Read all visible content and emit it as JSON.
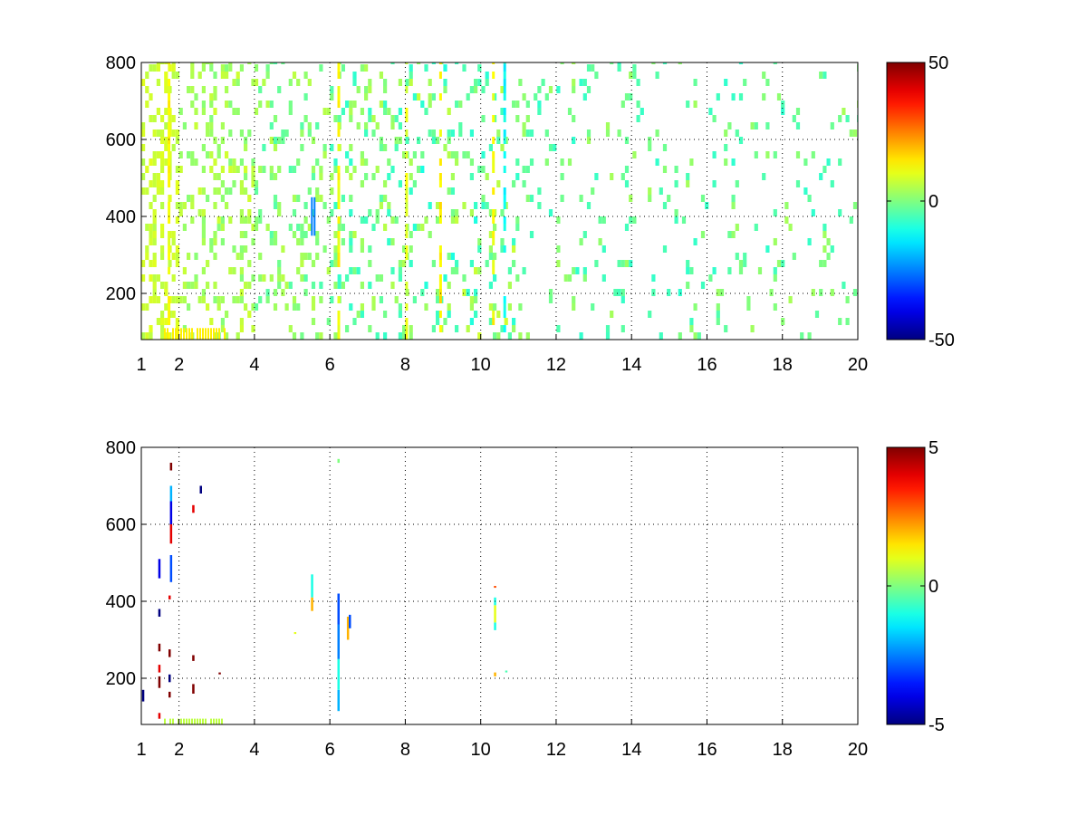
{
  "chart_data": [
    {
      "type": "heatmap",
      "title": "",
      "xlabel": "",
      "ylabel": "",
      "xlim": [
        1,
        20
      ],
      "ylim": [
        80,
        800
      ],
      "xticks": [
        1,
        2,
        4,
        6,
        8,
        10,
        12,
        14,
        16,
        18,
        20
      ],
      "yticks": [
        200,
        400,
        600,
        800
      ],
      "grid": true,
      "colormap": "jet",
      "clim": [
        -50,
        50
      ],
      "colorbar_ticks": [
        50,
        0,
        -50
      ],
      "density_profile": [
        {
          "x": [
            1.0,
            2.0
          ],
          "density": 0.85,
          "values": [
            5,
            10
          ]
        },
        {
          "x": [
            2.0,
            4.0
          ],
          "density": 0.55,
          "values": [
            0,
            8
          ]
        },
        {
          "x": [
            4.0,
            6.0
          ],
          "density": 0.4,
          "values": [
            -5,
            6
          ]
        },
        {
          "x": [
            6.0,
            8.0
          ],
          "density": 0.38,
          "values": [
            -8,
            6
          ]
        },
        {
          "x": [
            8.0,
            11.0
          ],
          "density": 0.4,
          "values": [
            -10,
            8
          ]
        },
        {
          "x": [
            11.0,
            20.0
          ],
          "density": 0.18,
          "values": [
            -8,
            4
          ]
        }
      ],
      "strong_columns": [
        {
          "x": 1.7,
          "value": 12
        },
        {
          "x": 6.2,
          "value": 12
        },
        {
          "x": 8.0,
          "value": 10
        },
        {
          "x": 8.9,
          "value": 14
        },
        {
          "x": 10.3,
          "value": 12
        },
        {
          "x": 10.6,
          "value": -12
        }
      ],
      "features": [
        {
          "x": [
            1.6,
            3.2
          ],
          "y": [
            80,
            110
          ],
          "value": 14
        },
        {
          "x": [
            5.5,
            5.6
          ],
          "y": [
            350,
            450
          ],
          "value": -25
        }
      ]
    },
    {
      "type": "heatmap",
      "title": "",
      "xlabel": "",
      "ylabel": "",
      "xlim": [
        1,
        20
      ],
      "ylim": [
        80,
        800
      ],
      "xticks": [
        1,
        2,
        4,
        6,
        8,
        10,
        12,
        14,
        16,
        18,
        20
      ],
      "yticks": [
        200,
        400,
        600,
        800
      ],
      "grid": true,
      "colormap": "jet",
      "clim": [
        -5,
        5
      ],
      "colorbar_ticks": [
        5,
        0,
        -5
      ],
      "segments": [
        {
          "x": 1.02,
          "y": [
            140,
            170
          ],
          "value": -5
        },
        {
          "x": 1.45,
          "y": [
            95,
            110
          ],
          "value": 4
        },
        {
          "x": 1.45,
          "y": [
            175,
            205
          ],
          "value": 5
        },
        {
          "x": 1.45,
          "y": [
            215,
            235
          ],
          "value": 4
        },
        {
          "x": 1.45,
          "y": [
            270,
            290
          ],
          "value": 5
        },
        {
          "x": 1.45,
          "y": [
            360,
            380
          ],
          "value": -5
        },
        {
          "x": 1.45,
          "y": [
            460,
            510
          ],
          "value": -4
        },
        {
          "x": 1.72,
          "y": [
            150,
            165
          ],
          "value": 5
        },
        {
          "x": 1.72,
          "y": [
            190,
            210
          ],
          "value": -5
        },
        {
          "x": 1.72,
          "y": [
            255,
            275
          ],
          "value": 5
        },
        {
          "x": 1.72,
          "y": [
            405,
            415
          ],
          "value": 4
        },
        {
          "x": 1.76,
          "y": [
            450,
            520
          ],
          "value": -3
        },
        {
          "x": 1.76,
          "y": [
            550,
            600
          ],
          "value": 4
        },
        {
          "x": 1.76,
          "y": [
            600,
            660
          ],
          "value": -4
        },
        {
          "x": 1.76,
          "y": [
            660,
            700
          ],
          "value": -2
        },
        {
          "x": 1.76,
          "y": [
            740,
            760
          ],
          "value": 5
        },
        {
          "x": 2.35,
          "y": [
            160,
            185
          ],
          "value": 5
        },
        {
          "x": 2.35,
          "y": [
            245,
            260
          ],
          "value": 5
        },
        {
          "x": 2.35,
          "y": [
            630,
            650
          ],
          "value": 4
        },
        {
          "x": 2.55,
          "y": [
            680,
            700
          ],
          "value": -5
        },
        {
          "x": 3.05,
          "y": [
            210,
            215
          ],
          "value": 5
        },
        {
          "x": 5.05,
          "y": [
            315,
            320
          ],
          "value": 1
        },
        {
          "x": 5.5,
          "y": [
            410,
            470
          ],
          "value": -1
        },
        {
          "x": 5.5,
          "y": [
            375,
            410
          ],
          "value": 2
        },
        {
          "x": 6.2,
          "y": [
            115,
            170
          ],
          "value": -2
        },
        {
          "x": 6.2,
          "y": [
            170,
            250
          ],
          "value": -1
        },
        {
          "x": 6.2,
          "y": [
            250,
            340
          ],
          "value": -2.5
        },
        {
          "x": 6.2,
          "y": [
            340,
            420
          ],
          "value": -3
        },
        {
          "x": 6.2,
          "y": [
            760,
            770
          ],
          "value": 0
        },
        {
          "x": 6.45,
          "y": [
            300,
            360
          ],
          "value": 2
        },
        {
          "x": 6.5,
          "y": [
            330,
            365
          ],
          "value": -3
        },
        {
          "x": 10.35,
          "y": [
            325,
            345
          ],
          "value": -1
        },
        {
          "x": 10.35,
          "y": [
            345,
            390
          ],
          "value": 1
        },
        {
          "x": 10.35,
          "y": [
            390,
            410
          ],
          "value": -1
        },
        {
          "x": 10.35,
          "y": [
            205,
            215
          ],
          "value": 2
        },
        {
          "x": 10.35,
          "y": [
            435,
            440
          ],
          "value": 3
        },
        {
          "x": 10.65,
          "y": [
            215,
            220
          ],
          "value": -0.5
        }
      ],
      "features": [
        {
          "x": [
            1.6,
            3.2
          ],
          "y": [
            80,
            95
          ],
          "value": 0.6
        }
      ]
    }
  ]
}
